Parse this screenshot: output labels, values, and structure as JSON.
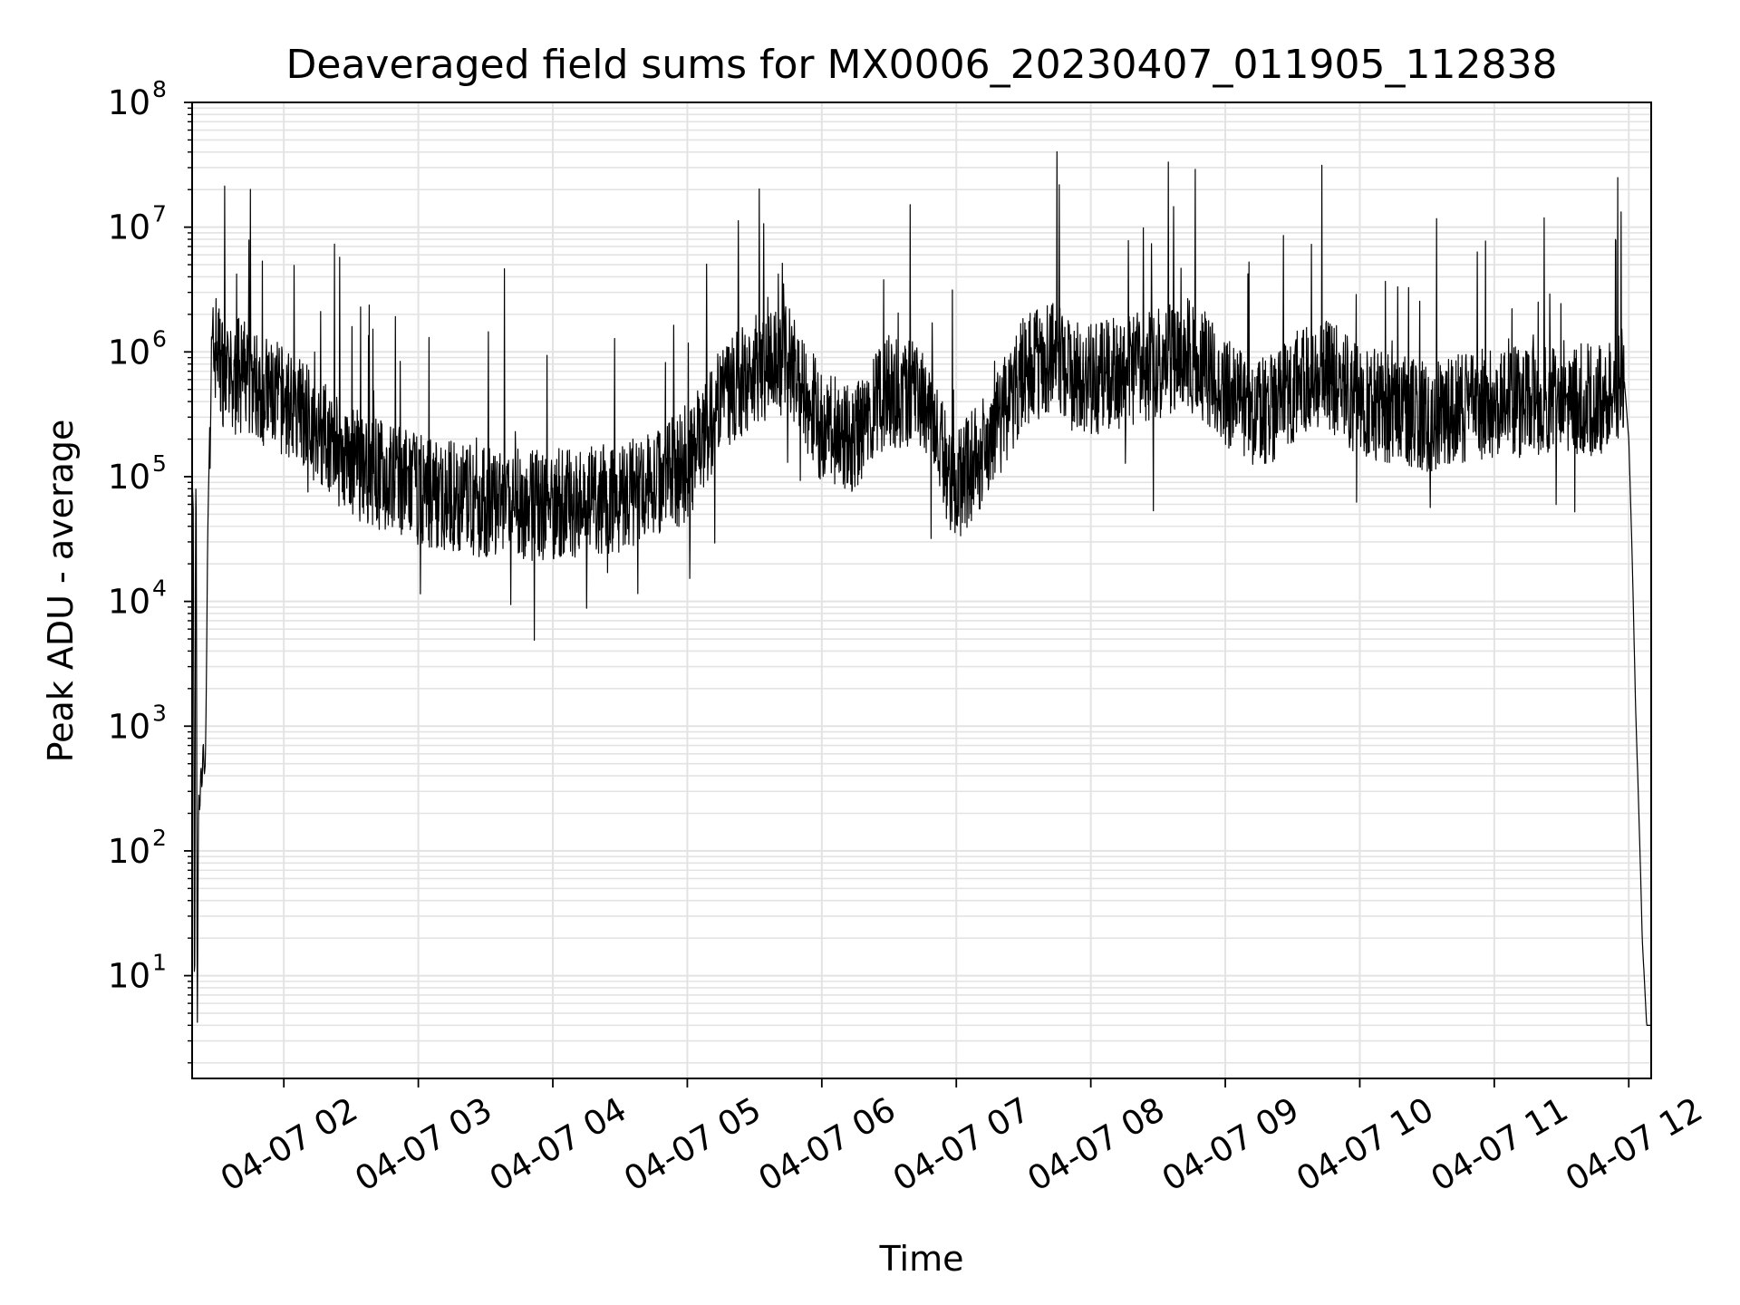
{
  "chart_data": {
    "type": "line",
    "title": "Deaveraged field sums for MX0006_20230407_011905_112838",
    "xlabel": "Time",
    "ylabel": "Peak ADU - average",
    "yscale": "log",
    "ylim": [
      1.5,
      100000000
    ],
    "xlim": [
      "2023-04-07T01:19:05",
      "2023-04-07T12:10:00"
    ],
    "grid": true,
    "line_color": "#000000",
    "grid_color": "#e3e3e3",
    "x_ticks": [
      {
        "x": "2023-04-07T02:00:00",
        "label": "04-07 02"
      },
      {
        "x": "2023-04-07T03:00:00",
        "label": "04-07 03"
      },
      {
        "x": "2023-04-07T04:00:00",
        "label": "04-07 04"
      },
      {
        "x": "2023-04-07T05:00:00",
        "label": "04-07 05"
      },
      {
        "x": "2023-04-07T06:00:00",
        "label": "04-07 06"
      },
      {
        "x": "2023-04-07T07:00:00",
        "label": "04-07 07"
      },
      {
        "x": "2023-04-07T08:00:00",
        "label": "04-07 08"
      },
      {
        "x": "2023-04-07T09:00:00",
        "label": "04-07 09"
      },
      {
        "x": "2023-04-07T10:00:00",
        "label": "04-07 10"
      },
      {
        "x": "2023-04-07T11:00:00",
        "label": "04-07 11"
      },
      {
        "x": "2023-04-07T12:00:00",
        "label": "04-07 12"
      }
    ],
    "y_ticks": [
      {
        "y": 10,
        "base": "10",
        "exp": "1"
      },
      {
        "y": 100,
        "base": "10",
        "exp": "2"
      },
      {
        "y": 1000,
        "base": "10",
        "exp": "3"
      },
      {
        "y": 10000,
        "base": "10",
        "exp": "4"
      },
      {
        "y": 100000,
        "base": "10",
        "exp": "5"
      },
      {
        "y": 1000000,
        "base": "10",
        "exp": "6"
      },
      {
        "y": 10000000,
        "base": "10",
        "exp": "7"
      },
      {
        "y": 100000000,
        "base": "10",
        "exp": "8"
      }
    ],
    "series": [
      {
        "x": [
          "2023-04-07T01:19:05",
          "2023-04-07T01:19:40",
          "2023-04-07T01:20:10",
          "2023-04-07T01:20:40",
          "2023-04-07T01:21:00",
          "2023-04-07T01:21:20",
          "2023-04-07T01:21:40",
          "2023-04-07T01:22:00",
          "2023-04-07T01:22:30",
          "2023-04-07T01:23:00",
          "2023-04-07T01:23:30",
          "2023-04-07T01:24:00",
          "2023-04-07T01:24:30",
          "2023-04-07T01:25:00",
          "2023-04-07T01:25:30",
          "2023-04-07T01:26:00",
          "2023-04-07T01:27:00",
          "2023-04-07T01:28:00",
          "2023-04-07T01:29:00",
          "2023-04-07T01:30:00",
          "2023-04-07T01:31:00",
          "2023-04-07T01:33:00",
          "2023-04-07T01:35:00",
          "2023-04-07T01:37:00",
          "2023-04-07T01:40:00",
          "2023-04-07T01:45:00",
          "2023-04-07T01:50:00",
          "2023-04-07T01:55:00",
          "2023-04-07T02:00:00",
          "2023-04-07T02:10:00",
          "2023-04-07T02:20:00",
          "2023-04-07T02:30:00",
          "2023-04-07T02:45:00",
          "2023-04-07T03:00:00",
          "2023-04-07T03:15:00",
          "2023-04-07T03:30:00",
          "2023-04-07T03:45:00",
          "2023-04-07T04:00:00",
          "2023-04-07T04:15:00",
          "2023-04-07T04:30:00",
          "2023-04-07T04:45:00",
          "2023-04-07T05:00:00",
          "2023-04-07T05:15:00",
          "2023-04-07T05:30:00",
          "2023-04-07T05:45:00",
          "2023-04-07T06:00:00",
          "2023-04-07T06:15:00",
          "2023-04-07T06:30:00",
          "2023-04-07T06:45:00",
          "2023-04-07T07:00:00",
          "2023-04-07T07:15:00",
          "2023-04-07T07:30:00",
          "2023-04-07T07:45:00",
          "2023-04-07T08:00:00",
          "2023-04-07T08:15:00",
          "2023-04-07T08:30:00",
          "2023-04-07T08:45:00",
          "2023-04-07T09:00:00",
          "2023-04-07T09:15:00",
          "2023-04-07T09:30:00",
          "2023-04-07T09:45:00",
          "2023-04-07T10:00:00",
          "2023-04-07T10:15:00",
          "2023-04-07T10:30:00",
          "2023-04-07T10:45:00",
          "2023-04-07T11:00:00",
          "2023-04-07T11:15:00",
          "2023-04-07T11:30:00",
          "2023-04-07T11:45:00",
          "2023-04-07T11:55:00",
          "2023-04-07T11:58:00",
          "2023-04-07T12:00:00",
          "2023-04-07T12:01:00",
          "2023-04-07T12:02:00",
          "2023-04-07T12:03:00",
          "2023-04-07T12:04:00",
          "2023-04-07T12:05:00",
          "2023-04-07T12:06:00",
          "2023-04-07T12:08:00",
          "2023-04-07T12:10:00"
        ],
        "y": [
          100000,
          50000,
          2,
          100000,
          40000,
          2,
          40,
          300,
          200,
          500,
          300,
          800,
          400,
          500,
          3000,
          30000,
          300000,
          900000,
          1000000,
          1200000,
          900000,
          700000,
          600000,
          500000,
          700000,
          600000,
          500000,
          450000,
          400000,
          300000,
          200000,
          130000,
          100000,
          80000,
          70000,
          60000,
          60000,
          60000,
          65000,
          70000,
          90000,
          120000,
          400000,
          700000,
          900000,
          250000,
          200000,
          500000,
          400000,
          80000,
          200000,
          700000,
          900000,
          600000,
          700000,
          800000,
          1000000,
          500000,
          300000,
          500000,
          700000,
          400000,
          350000,
          300000,
          350000,
          400000,
          400000,
          450000,
          400000,
          500000,
          600000,
          200000,
          50000,
          10000,
          1500,
          400,
          100,
          20,
          4,
          4
        ]
      }
    ]
  }
}
